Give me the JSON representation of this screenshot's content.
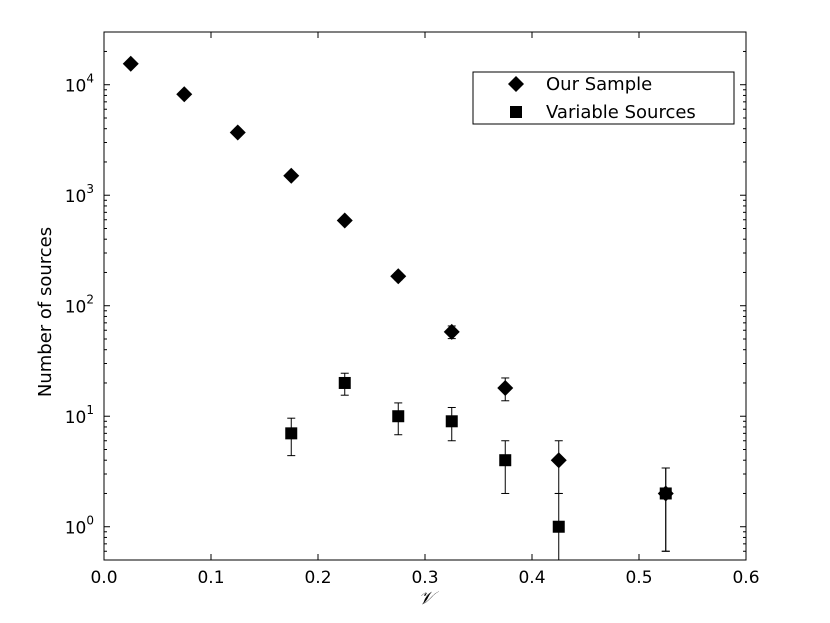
{
  "chart_data": {
    "type": "scatter",
    "title": "",
    "xlabel": "𝒱",
    "ylabel": "Number of sources",
    "xlim": [
      0.0,
      0.6
    ],
    "ylim": [
      0.5,
      30000
    ],
    "yscale": "log",
    "grid": false,
    "legend_position": "top-right",
    "x_ticks": [
      0.0,
      0.1,
      0.2,
      0.3,
      0.4,
      0.5,
      0.6
    ],
    "x_tick_labels": [
      "0.0",
      "0.1",
      "0.2",
      "0.3",
      "0.4",
      "0.5",
      "0.6"
    ],
    "y_ticks": [
      {
        "value": 1,
        "base": "10",
        "exp": "0"
      },
      {
        "value": 10,
        "base": "10",
        "exp": "1"
      },
      {
        "value": 100,
        "base": "10",
        "exp": "2"
      },
      {
        "value": 1000,
        "base": "10",
        "exp": "3"
      },
      {
        "value": 10000,
        "base": "10",
        "exp": "4"
      }
    ],
    "series": [
      {
        "name": "Our Sample",
        "marker": "diamond",
        "color": "#000000",
        "x": [
          0.025,
          0.075,
          0.125,
          0.175,
          0.225,
          0.275,
          0.325,
          0.375,
          0.425,
          0.525
        ],
        "y": [
          15500,
          8200,
          3700,
          1500,
          590,
          185,
          58,
          18,
          4,
          2
        ],
        "yerr_low": [
          15380,
          8110,
          3640,
          1460,
          565,
          171,
          50.4,
          13.8,
          2,
          0.6
        ],
        "yerr_high": [
          15620,
          8290,
          3760,
          1540,
          615,
          199,
          65.6,
          22.2,
          6,
          3.4
        ]
      },
      {
        "name": "Variable Sources",
        "marker": "square",
        "color": "#000000",
        "x": [
          0.175,
          0.225,
          0.275,
          0.325,
          0.375,
          0.425,
          0.525
        ],
        "y": [
          7,
          20,
          10,
          9,
          4,
          1,
          2
        ],
        "yerr_low": [
          4.4,
          15.5,
          6.8,
          6.0,
          2.0,
          0.4,
          0.6
        ],
        "yerr_high": [
          9.6,
          24.5,
          13.2,
          12.0,
          6.0,
          2.0,
          3.4
        ]
      }
    ]
  }
}
